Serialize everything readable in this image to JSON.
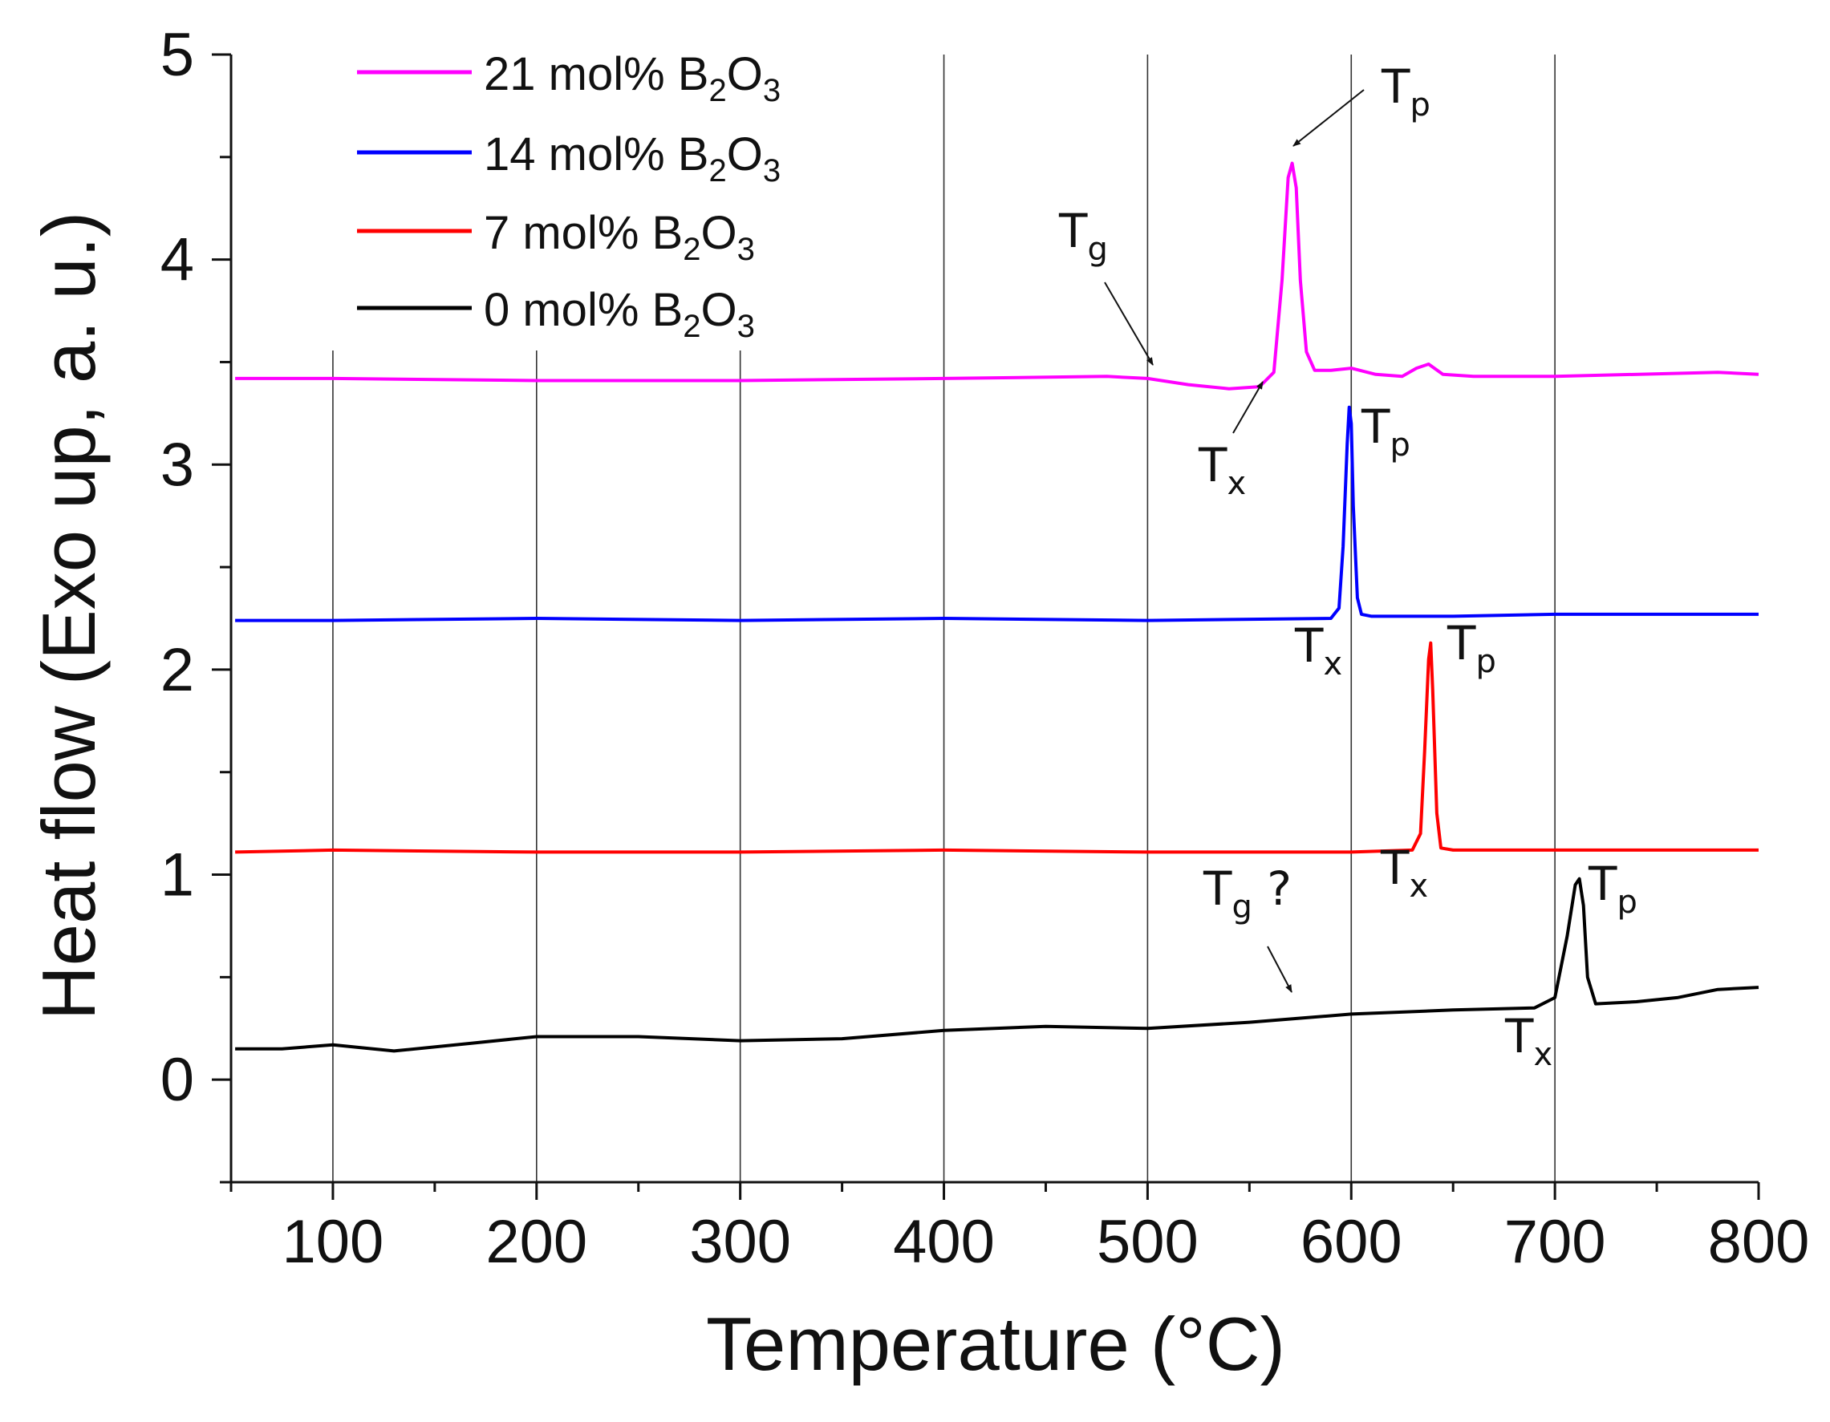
{
  "chart_data": {
    "type": "line",
    "xlabel": "Temperature (°C)",
    "ylabel": "Heat flow (Exo up, a. u.)",
    "xlim": [
      50,
      800
    ],
    "ylim": [
      -0.5,
      5
    ],
    "xticks": [
      100,
      200,
      300,
      400,
      500,
      600,
      700,
      800
    ],
    "yticks": [
      0,
      1,
      2,
      3,
      4,
      5
    ],
    "vertical_grid": [
      100,
      200,
      300,
      400,
      500,
      600,
      700
    ],
    "legend_position": "top-left",
    "series": [
      {
        "name": "21 mol% B2O3",
        "label_main": "21 mol% B",
        "label_sub1": "2",
        "label_mid": "O",
        "label_sub2": "3",
        "color": "#ff00ff",
        "x": [
          52,
          100,
          200,
          300,
          400,
          480,
          500,
          520,
          540,
          555,
          562,
          566,
          569,
          571,
          573,
          575,
          578,
          582,
          590,
          600,
          612,
          625,
          632,
          638,
          645,
          660,
          700,
          780,
          800
        ],
        "y": [
          3.42,
          3.42,
          3.41,
          3.41,
          3.42,
          3.43,
          3.42,
          3.39,
          3.37,
          3.38,
          3.45,
          3.9,
          4.4,
          4.47,
          4.35,
          3.9,
          3.55,
          3.46,
          3.46,
          3.47,
          3.44,
          3.43,
          3.47,
          3.49,
          3.44,
          3.43,
          3.43,
          3.45,
          3.44
        ]
      },
      {
        "name": "14 mol% B2O3",
        "label_main": "14 mol% B",
        "label_sub1": "2",
        "label_mid": "O",
        "label_sub2": "3",
        "color": "#0000ff",
        "x": [
          52,
          100,
          200,
          300,
          400,
          500,
          590,
          594,
          596,
          598,
          599,
          600,
          601,
          603,
          605,
          610,
          650,
          700,
          800
        ],
        "y": [
          2.24,
          2.24,
          2.25,
          2.24,
          2.25,
          2.24,
          2.25,
          2.3,
          2.6,
          3.1,
          3.28,
          3.2,
          2.8,
          2.35,
          2.27,
          2.26,
          2.26,
          2.27,
          2.27
        ]
      },
      {
        "name": "7 mol% B2O3",
        "label_main": "7 mol% B",
        "label_sub1": "2",
        "label_mid": "O",
        "label_sub2": "3",
        "color": "#ff0000",
        "x": [
          52,
          100,
          200,
          300,
          400,
          500,
          600,
          630,
          634,
          636,
          638,
          639,
          640,
          642,
          644,
          650,
          700,
          800
        ],
        "y": [
          1.11,
          1.12,
          1.11,
          1.11,
          1.12,
          1.11,
          1.11,
          1.12,
          1.2,
          1.6,
          2.05,
          2.13,
          1.9,
          1.3,
          1.13,
          1.12,
          1.12,
          1.12
        ]
      },
      {
        "name": "0 mol% B2O3",
        "label_main": "0 mol% B",
        "label_sub1": "2",
        "label_mid": "O",
        "label_sub2": "3",
        "color": "#000000",
        "x": [
          52,
          75,
          100,
          130,
          170,
          200,
          250,
          300,
          350,
          400,
          450,
          500,
          550,
          575,
          600,
          650,
          690,
          700,
          706,
          710,
          712,
          714,
          716,
          720,
          740,
          760,
          780,
          800
        ],
        "y": [
          0.15,
          0.15,
          0.17,
          0.14,
          0.18,
          0.21,
          0.21,
          0.19,
          0.2,
          0.24,
          0.26,
          0.25,
          0.28,
          0.3,
          0.32,
          0.34,
          0.35,
          0.4,
          0.7,
          0.95,
          0.98,
          0.85,
          0.5,
          0.37,
          0.38,
          0.4,
          0.44,
          0.45
        ]
      }
    ],
    "annotations": [
      {
        "id": "tp-21",
        "text": "T",
        "sub": "p"
      },
      {
        "id": "tg-21",
        "text": "T",
        "sub": "g"
      },
      {
        "id": "tx-21",
        "text": "T",
        "sub": "x"
      },
      {
        "id": "tp-14",
        "text": "T",
        "sub": "p"
      },
      {
        "id": "tx-14",
        "text": "T",
        "sub": "x"
      },
      {
        "id": "tp-7",
        "text": "T",
        "sub": "p"
      },
      {
        "id": "tx-7",
        "text": "T",
        "sub": "x"
      },
      {
        "id": "tg-0",
        "text": "T",
        "sub": "g",
        "suffix": " ?"
      },
      {
        "id": "tp-0",
        "text": "T",
        "sub": "p"
      },
      {
        "id": "tx-0",
        "text": "T",
        "sub": "x"
      }
    ]
  }
}
